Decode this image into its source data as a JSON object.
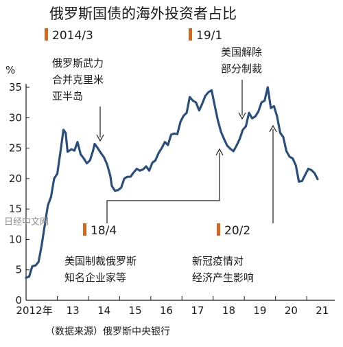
{
  "chart_data": {
    "type": "line",
    "title": "俄罗斯国债的海外投资者占比",
    "ylabel": "%",
    "ylim": [
      0,
      35
    ],
    "yticks": [
      "0",
      "5",
      "10",
      "15",
      "20",
      "25",
      "30",
      "35"
    ],
    "xlim": [
      2012.0,
      2021.9
    ],
    "xticks": [
      {
        "label": "2012年",
        "x": 2012.0
      },
      {
        "label": "13",
        "x": 2013.0
      },
      {
        "label": "14",
        "x": 2014.0
      },
      {
        "label": "15",
        "x": 2015.0
      },
      {
        "label": "16",
        "x": 2016.0
      },
      {
        "label": "17",
        "x": 2017.0
      },
      {
        "label": "18",
        "x": 2018.0
      },
      {
        "label": "19",
        "x": 2019.0
      },
      {
        "label": "20",
        "x": 2020.0
      },
      {
        "label": "21",
        "x": 2021.0
      }
    ],
    "color": "#2b4f7c",
    "series": [
      {
        "points": [
          [
            2012.0,
            3.7
          ],
          [
            2012.1,
            3.9
          ],
          [
            2012.2,
            5.6
          ],
          [
            2012.3,
            5.7
          ],
          [
            2012.4,
            6.3
          ],
          [
            2012.5,
            9.0
          ],
          [
            2012.6,
            12.4
          ],
          [
            2012.7,
            15.6
          ],
          [
            2012.8,
            17.0
          ],
          [
            2012.9,
            20.0
          ],
          [
            2013.0,
            20.8
          ],
          [
            2013.1,
            24.3
          ],
          [
            2013.2,
            28.0
          ],
          [
            2013.27,
            27.5
          ],
          [
            2013.33,
            24.4
          ],
          [
            2013.45,
            24.8
          ],
          [
            2013.55,
            24.6
          ],
          [
            2013.65,
            26.0
          ],
          [
            2013.75,
            24.0
          ],
          [
            2013.85,
            23.3
          ],
          [
            2013.95,
            22.5
          ],
          [
            2014.05,
            23.0
          ],
          [
            2014.15,
            24.6
          ],
          [
            2014.2,
            25.7
          ],
          [
            2014.3,
            25.0
          ],
          [
            2014.4,
            24.2
          ],
          [
            2014.5,
            23.5
          ],
          [
            2014.6,
            22.3
          ],
          [
            2014.7,
            20.5
          ],
          [
            2014.75,
            18.8
          ],
          [
            2014.85,
            18.0
          ],
          [
            2014.95,
            18.1
          ],
          [
            2015.05,
            18.5
          ],
          [
            2015.15,
            20.0
          ],
          [
            2015.25,
            20.3
          ],
          [
            2015.35,
            20.3
          ],
          [
            2015.45,
            21.0
          ],
          [
            2015.55,
            21.6
          ],
          [
            2015.65,
            21.3
          ],
          [
            2015.75,
            21.5
          ],
          [
            2015.85,
            22.0
          ],
          [
            2015.95,
            21.3
          ],
          [
            2016.05,
            22.6
          ],
          [
            2016.15,
            23.0
          ],
          [
            2016.25,
            24.2
          ],
          [
            2016.35,
            25.0
          ],
          [
            2016.45,
            26.0
          ],
          [
            2016.55,
            25.5
          ],
          [
            2016.65,
            27.2
          ],
          [
            2016.75,
            27.4
          ],
          [
            2016.85,
            27.3
          ],
          [
            2016.95,
            29.3
          ],
          [
            2017.05,
            30.3
          ],
          [
            2017.15,
            30.8
          ],
          [
            2017.25,
            33.4
          ],
          [
            2017.35,
            32.8
          ],
          [
            2017.45,
            32.5
          ],
          [
            2017.55,
            31.2
          ],
          [
            2017.65,
            32.3
          ],
          [
            2017.75,
            33.6
          ],
          [
            2017.85,
            34.2
          ],
          [
            2017.95,
            34.5
          ],
          [
            2018.05,
            32.0
          ],
          [
            2018.15,
            29.6
          ],
          [
            2018.25,
            27.7
          ],
          [
            2018.35,
            26.5
          ],
          [
            2018.45,
            25.4
          ],
          [
            2018.55,
            24.9
          ],
          [
            2018.65,
            24.5
          ],
          [
            2018.75,
            25.4
          ],
          [
            2018.85,
            26.5
          ],
          [
            2018.95,
            28.0
          ],
          [
            2019.05,
            28.6
          ],
          [
            2019.15,
            30.8
          ],
          [
            2019.25,
            29.9
          ],
          [
            2019.35,
            30.2
          ],
          [
            2019.45,
            31.0
          ],
          [
            2019.55,
            32.5
          ],
          [
            2019.65,
            32.8
          ],
          [
            2019.75,
            35.0
          ],
          [
            2019.85,
            31.6
          ],
          [
            2019.95,
            31.9
          ],
          [
            2020.05,
            30.2
          ],
          [
            2020.15,
            27.5
          ],
          [
            2020.25,
            26.8
          ],
          [
            2020.35,
            24.5
          ],
          [
            2020.45,
            23.6
          ],
          [
            2020.55,
            23.3
          ],
          [
            2020.65,
            22.2
          ],
          [
            2020.75,
            19.5
          ],
          [
            2020.85,
            19.6
          ],
          [
            2020.95,
            20.6
          ],
          [
            2021.05,
            21.6
          ],
          [
            2021.15,
            21.4
          ],
          [
            2021.25,
            20.9
          ],
          [
            2021.35,
            19.9
          ]
        ]
      }
    ],
    "annotations": [
      {
        "date": "2014/3",
        "text": [
          "俄罗斯武力",
          "合并克里米",
          "亚半岛"
        ]
      },
      {
        "date": "19/1",
        "text": [
          "美国解除",
          "部分制裁"
        ]
      },
      {
        "date": "18/4",
        "text": [
          "美国制裁俄罗斯",
          "知名企业家等"
        ]
      },
      {
        "date": "20/2",
        "text": [
          "新冠疫情对",
          "经济产生影响"
        ]
      }
    ],
    "source": "（数据来源）俄罗斯中央银行",
    "watermark": "日经中文网"
  }
}
